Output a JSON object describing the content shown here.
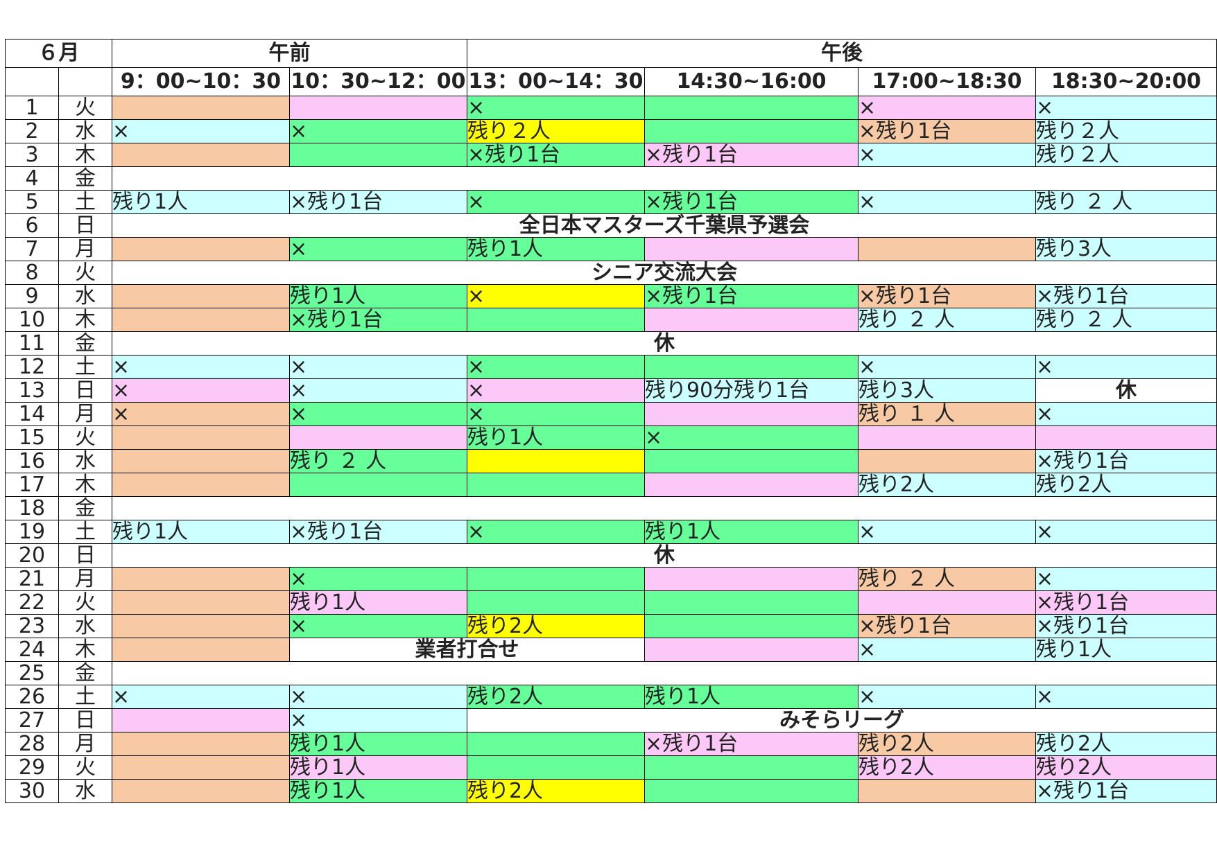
{
  "title": "６月",
  "am_label": "午前",
  "pm_label": "午後",
  "time_slots": [
    "9：00~10：30",
    "10：30~12：00",
    "13：00~14：30",
    "14:30~16:00",
    "17:00~18:30",
    "18:30~20:00"
  ],
  "colors": {
    "o": "#f7c9a5",
    "p": "#fcc8f8",
    "g": "#66ff99",
    "c": "#ccffff",
    "y": "#ffff00",
    "w": "#ffffff",
    "sunday_red": "#e02020",
    "event_blue": "#1c22d8"
  },
  "rows": [
    {
      "day": "1",
      "dow": "火",
      "cells": [
        {
          "t": "",
          "c": "o"
        },
        {
          "t": "",
          "c": "p"
        },
        {
          "t": "×",
          "c": "g"
        },
        {
          "t": "",
          "c": "g"
        },
        {
          "t": "×",
          "c": "p"
        },
        {
          "t": "×",
          "c": "c"
        }
      ]
    },
    {
      "day": "2",
      "dow": "水",
      "cells": [
        {
          "t": "×",
          "c": "c"
        },
        {
          "t": "×",
          "c": "g"
        },
        {
          "t": "残り２人",
          "c": "y"
        },
        {
          "t": "",
          "c": "g"
        },
        {
          "t": "×残り1台",
          "c": "o"
        },
        {
          "t": "残り２人",
          "c": "c"
        }
      ]
    },
    {
      "day": "3",
      "dow": "木",
      "cells": [
        {
          "t": "",
          "c": "o"
        },
        {
          "t": "",
          "c": "g"
        },
        {
          "t": "×残り1台",
          "c": "g"
        },
        {
          "t": "×残り1台",
          "c": "p"
        },
        {
          "t": "×",
          "c": "c"
        },
        {
          "t": "残り２人",
          "c": "c"
        }
      ]
    },
    {
      "day": "4",
      "dow": "金",
      "cells": [
        {
          "t": "",
          "c": "w",
          "span": 6
        }
      ]
    },
    {
      "day": "5",
      "dow": "土",
      "cells": [
        {
          "t": "残り1人",
          "c": "c"
        },
        {
          "t": "×残り1台",
          "c": "c"
        },
        {
          "t": "×",
          "c": "g"
        },
        {
          "t": "×残り1台",
          "c": "g"
        },
        {
          "t": "×",
          "c": "c"
        },
        {
          "t": "残り ２ 人",
          "c": "c"
        }
      ]
    },
    {
      "day": "6",
      "dow": "日",
      "red": true,
      "cells": [
        {
          "t": "全日本マスターズ千葉県予選会",
          "c": "w",
          "span": 6,
          "ev": "red"
        }
      ]
    },
    {
      "day": "7",
      "dow": "月",
      "cells": [
        {
          "t": "",
          "c": "o"
        },
        {
          "t": "×",
          "c": "g"
        },
        {
          "t": "残り1人",
          "c": "g"
        },
        {
          "t": "",
          "c": "p"
        },
        {
          "t": "",
          "c": "o"
        },
        {
          "t": "残り3人",
          "c": "c"
        }
      ]
    },
    {
      "day": "8",
      "dow": "火",
      "cells": [
        {
          "t": "シニア交流大会",
          "c": "w",
          "span": 6,
          "ev": "red"
        }
      ]
    },
    {
      "day": "9",
      "dow": "水",
      "cells": [
        {
          "t": "",
          "c": "o"
        },
        {
          "t": "残り1人",
          "c": "g"
        },
        {
          "t": "×",
          "c": "y"
        },
        {
          "t": "×残り1台",
          "c": "g"
        },
        {
          "t": "×残り1台",
          "c": "o"
        },
        {
          "t": "×残り1台",
          "c": "c"
        }
      ]
    },
    {
      "day": "10",
      "dow": "木",
      "cells": [
        {
          "t": "",
          "c": "o"
        },
        {
          "t": "×残り1台",
          "c": "g"
        },
        {
          "t": "",
          "c": "g"
        },
        {
          "t": "",
          "c": "p"
        },
        {
          "t": "残り ２ 人",
          "c": "c"
        },
        {
          "t": "残り ２ 人",
          "c": "c"
        }
      ]
    },
    {
      "day": "11",
      "dow": "金",
      "cells": [
        {
          "t": "休",
          "c": "w",
          "span": 6,
          "ev": "red"
        }
      ]
    },
    {
      "day": "12",
      "dow": "土",
      "cells": [
        {
          "t": "×",
          "c": "c"
        },
        {
          "t": "×",
          "c": "c"
        },
        {
          "t": "×",
          "c": "g"
        },
        {
          "t": "",
          "c": "g"
        },
        {
          "t": "×",
          "c": "c"
        },
        {
          "t": "×",
          "c": "c"
        }
      ]
    },
    {
      "day": "13",
      "dow": "日",
      "red": true,
      "cells": [
        {
          "t": "×",
          "c": "p"
        },
        {
          "t": "×",
          "c": "c"
        },
        {
          "t": "×",
          "c": "p"
        },
        {
          "t": "残り90分残り1台",
          "c": "c"
        },
        {
          "t": "残り3人",
          "c": "c"
        },
        {
          "t": "休",
          "c": "w",
          "rest": true
        }
      ]
    },
    {
      "day": "14",
      "dow": "月",
      "cells": [
        {
          "t": "×",
          "c": "o"
        },
        {
          "t": "×",
          "c": "g"
        },
        {
          "t": "×",
          "c": "g"
        },
        {
          "t": "",
          "c": "p"
        },
        {
          "t": "残り １ 人",
          "c": "o"
        },
        {
          "t": "×",
          "c": "c"
        }
      ]
    },
    {
      "day": "15",
      "dow": "火",
      "cells": [
        {
          "t": "",
          "c": "o"
        },
        {
          "t": "",
          "c": "p"
        },
        {
          "t": "残り1人",
          "c": "g"
        },
        {
          "t": "×",
          "c": "g"
        },
        {
          "t": "",
          "c": "p"
        },
        {
          "t": "",
          "c": "p"
        }
      ]
    },
    {
      "day": "16",
      "dow": "水",
      "cells": [
        {
          "t": "",
          "c": "o"
        },
        {
          "t": "残り ２ 人",
          "c": "g"
        },
        {
          "t": "",
          "c": "y"
        },
        {
          "t": "",
          "c": "g"
        },
        {
          "t": "",
          "c": "o"
        },
        {
          "t": "×残り1台",
          "c": "c"
        }
      ]
    },
    {
      "day": "17",
      "dow": "木",
      "cells": [
        {
          "t": "",
          "c": "o"
        },
        {
          "t": "",
          "c": "g"
        },
        {
          "t": "",
          "c": "g"
        },
        {
          "t": "",
          "c": "p"
        },
        {
          "t": "残り2人",
          "c": "c"
        },
        {
          "t": "残り2人",
          "c": "c"
        }
      ]
    },
    {
      "day": "18",
      "dow": "金",
      "cells": [
        {
          "t": "",
          "c": "w",
          "span": 6
        }
      ]
    },
    {
      "day": "19",
      "dow": "土",
      "cells": [
        {
          "t": "残り1人",
          "c": "c"
        },
        {
          "t": "×残り1台",
          "c": "c"
        },
        {
          "t": "×",
          "c": "g"
        },
        {
          "t": "残り1人",
          "c": "g"
        },
        {
          "t": "×",
          "c": "c"
        },
        {
          "t": "×",
          "c": "c"
        }
      ]
    },
    {
      "day": "20",
      "dow": "日",
      "red": true,
      "cells": [
        {
          "t": "休",
          "c": "w",
          "span": 6,
          "ev": "red"
        }
      ]
    },
    {
      "day": "21",
      "dow": "月",
      "cells": [
        {
          "t": "",
          "c": "o"
        },
        {
          "t": "×",
          "c": "g"
        },
        {
          "t": "",
          "c": "g"
        },
        {
          "t": "",
          "c": "p"
        },
        {
          "t": "残り ２ 人",
          "c": "o"
        },
        {
          "t": "×",
          "c": "c"
        }
      ]
    },
    {
      "day": "22",
      "dow": "火",
      "cells": [
        {
          "t": "",
          "c": "o"
        },
        {
          "t": "残り1人",
          "c": "p"
        },
        {
          "t": "",
          "c": "g"
        },
        {
          "t": "",
          "c": "g"
        },
        {
          "t": "",
          "c": "p"
        },
        {
          "t": "×残り1台",
          "c": "p"
        }
      ]
    },
    {
      "day": "23",
      "dow": "水",
      "cells": [
        {
          "t": "",
          "c": "o"
        },
        {
          "t": "×",
          "c": "g"
        },
        {
          "t": "残り2人",
          "c": "y"
        },
        {
          "t": "",
          "c": "g"
        },
        {
          "t": "×残り1台",
          "c": "o"
        },
        {
          "t": "×残り1台",
          "c": "c"
        }
      ]
    },
    {
      "day": "24",
      "dow": "木",
      "cells": [
        {
          "t": "",
          "c": "o"
        },
        {
          "t": "業者打合せ",
          "c": "w",
          "span": 2,
          "ev": "blue"
        },
        {
          "t": "",
          "c": "p"
        },
        {
          "t": "×",
          "c": "c"
        },
        {
          "t": "残り1人",
          "c": "c"
        }
      ]
    },
    {
      "day": "25",
      "dow": "金",
      "cells": [
        {
          "t": "",
          "c": "w",
          "span": 6
        }
      ]
    },
    {
      "day": "26",
      "dow": "土",
      "cells": [
        {
          "t": "×",
          "c": "c"
        },
        {
          "t": "×",
          "c": "c"
        },
        {
          "t": "残り2人",
          "c": "g"
        },
        {
          "t": "残り1人",
          "c": "g"
        },
        {
          "t": "×",
          "c": "c"
        },
        {
          "t": "×",
          "c": "c"
        }
      ]
    },
    {
      "day": "27",
      "dow": "日",
      "red": true,
      "cells": [
        {
          "t": "",
          "c": "p"
        },
        {
          "t": "×",
          "c": "c"
        },
        {
          "t": "みそらリーグ",
          "c": "w",
          "span": 4,
          "ev": "red"
        }
      ]
    },
    {
      "day": "28",
      "dow": "月",
      "cells": [
        {
          "t": "",
          "c": "o"
        },
        {
          "t": "残り1人",
          "c": "g"
        },
        {
          "t": "",
          "c": "g"
        },
        {
          "t": "×残り1台",
          "c": "p"
        },
        {
          "t": "残り2人",
          "c": "o"
        },
        {
          "t": "残り2人",
          "c": "c"
        }
      ]
    },
    {
      "day": "29",
      "dow": "火",
      "cells": [
        {
          "t": "",
          "c": "o"
        },
        {
          "t": "残り1人",
          "c": "p"
        },
        {
          "t": "",
          "c": "g"
        },
        {
          "t": "",
          "c": "g"
        },
        {
          "t": "残り2人",
          "c": "p"
        },
        {
          "t": "残り2人",
          "c": "p"
        }
      ]
    },
    {
      "day": "30",
      "dow": "水",
      "cells": [
        {
          "t": "",
          "c": "o"
        },
        {
          "t": "残り1人",
          "c": "g"
        },
        {
          "t": "残り2人",
          "c": "y"
        },
        {
          "t": "",
          "c": "g"
        },
        {
          "t": "",
          "c": "o"
        },
        {
          "t": "×残り1台",
          "c": "c"
        }
      ]
    }
  ]
}
